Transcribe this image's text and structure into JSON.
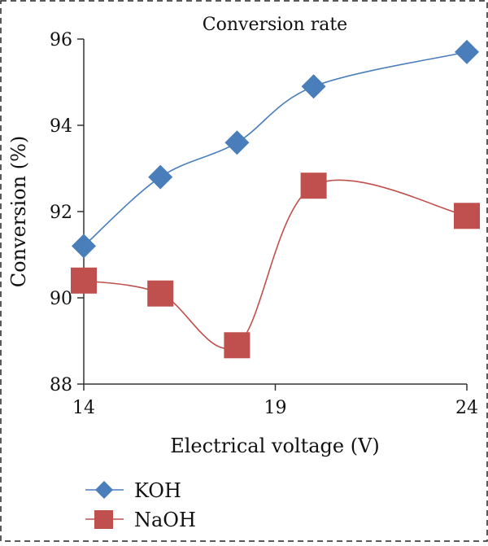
{
  "chart_data": {
    "type": "line",
    "title": "Conversion rate",
    "xlabel": "Electrical voltage (V)",
    "ylabel": "Conversion (%)",
    "xlim": [
      14,
      24
    ],
    "ylim": [
      88,
      96
    ],
    "x_ticks": [
      "14",
      "19",
      "24"
    ],
    "y_ticks": [
      "88",
      "90",
      "92",
      "94",
      "96"
    ],
    "grid": false,
    "legend_position": "bottom-left",
    "series": [
      {
        "name": "KOH",
        "marker": "diamond",
        "color": "#4a7ebb",
        "x": [
          14,
          16,
          18,
          20,
          24
        ],
        "y": [
          91.2,
          92.8,
          93.6,
          94.9,
          95.7
        ]
      },
      {
        "name": "NaOH",
        "marker": "square",
        "color": "#c0504d",
        "x": [
          14,
          16,
          18,
          20,
          24
        ],
        "y": [
          90.4,
          90.1,
          88.9,
          92.6,
          91.9
        ]
      }
    ]
  }
}
